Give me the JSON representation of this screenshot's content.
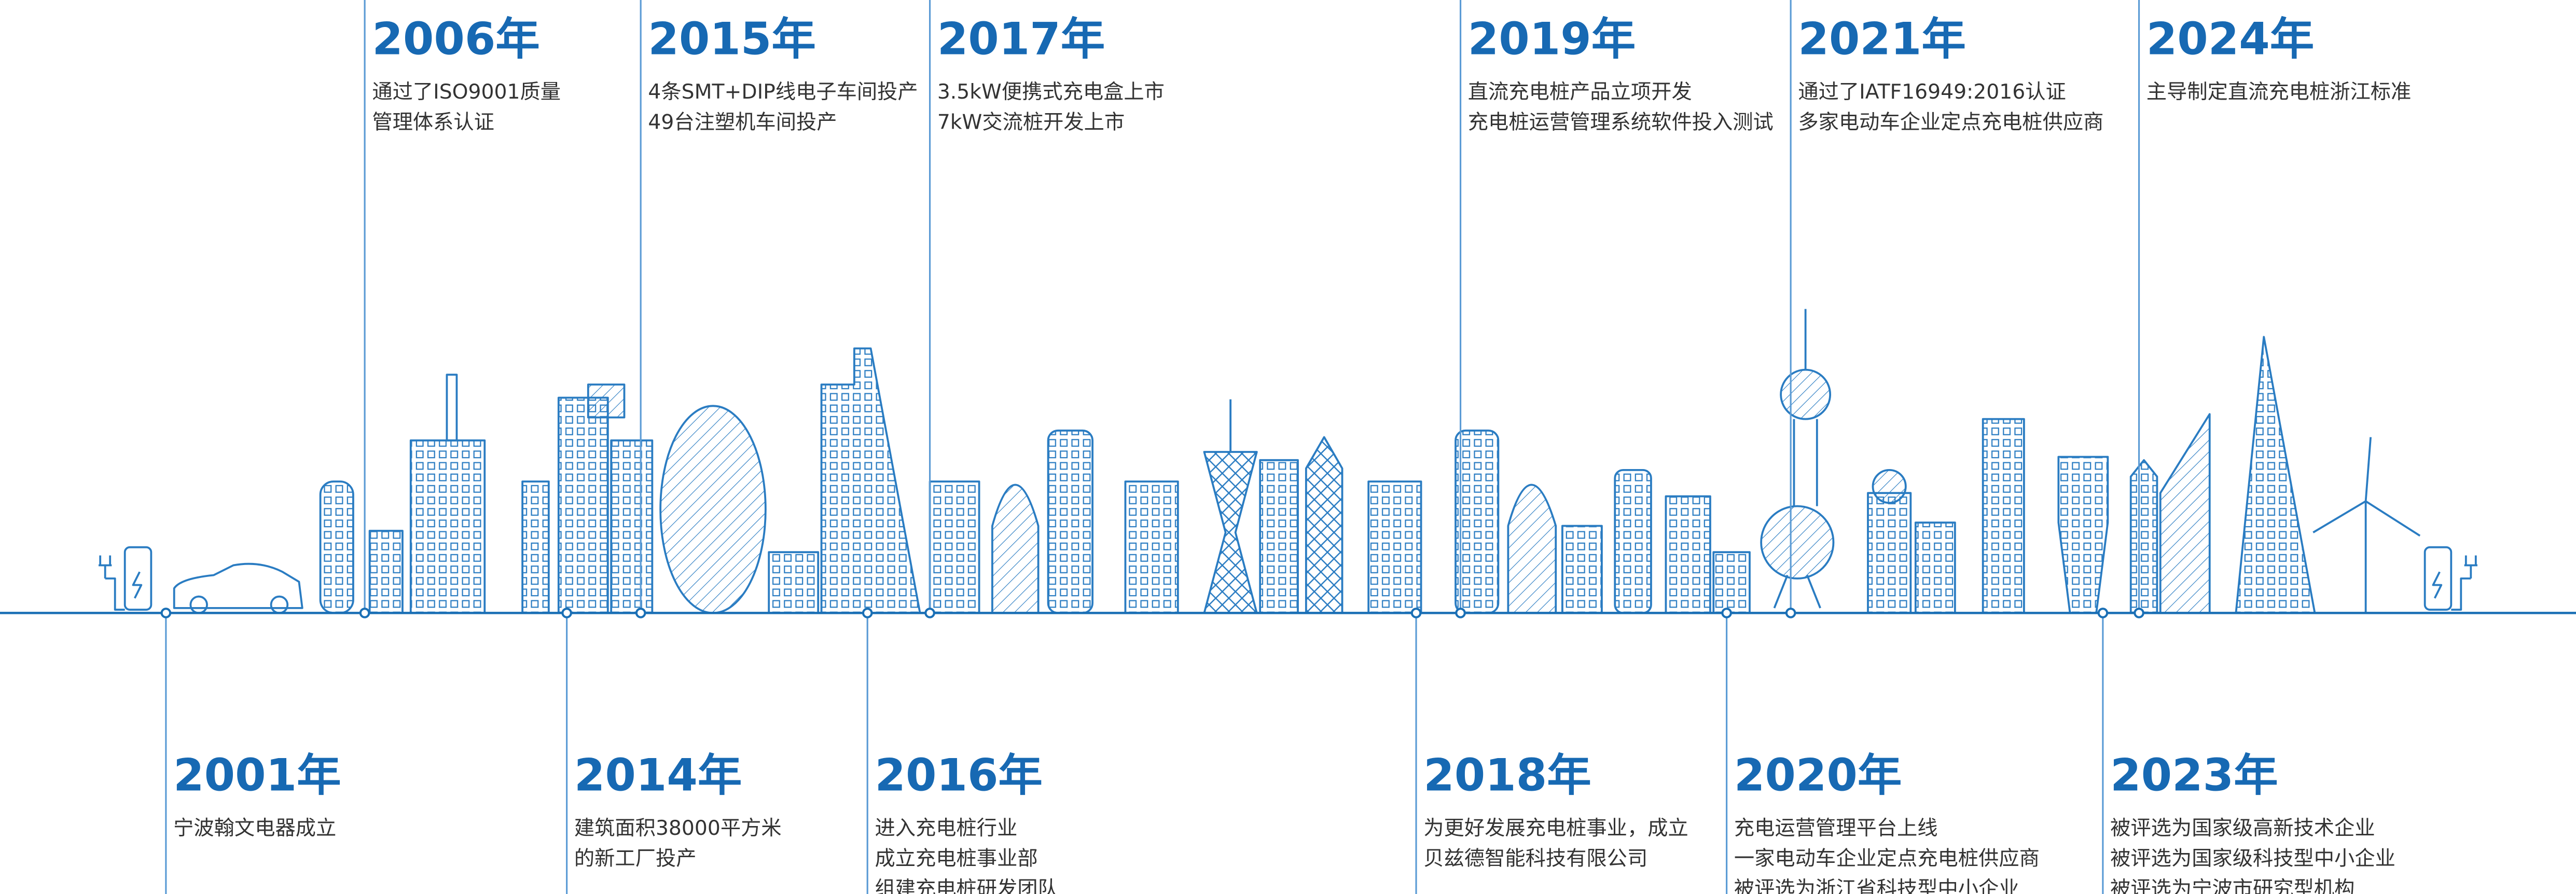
{
  "timeline": {
    "events": [
      {
        "year": "2001年",
        "lines": [
          "宁波翰文电器成立"
        ]
      },
      {
        "year": "2006年",
        "lines": [
          "通过了ISO9001质量",
          "管理体系认证"
        ]
      },
      {
        "year": "2014年",
        "lines": [
          "建筑面积38000平方米",
          "的新工厂投产"
        ]
      },
      {
        "year": "2015年",
        "lines": [
          "4条SMT+DIP线电子车间投产",
          "49台注塑机车间投产"
        ]
      },
      {
        "year": "2016年",
        "lines": [
          "进入充电桩行业",
          "成立充电桩事业部",
          "组建充电桩研发团队"
        ]
      },
      {
        "year": "2017年",
        "lines": [
          "3.5kW便携式充电盒上市",
          "7kW交流桩开发上市"
        ]
      },
      {
        "year": "2018年",
        "lines": [
          "为更好发展充电桩事业，成立",
          "贝兹德智能科技有限公司"
        ]
      },
      {
        "year": "2019年",
        "lines": [
          "直流充电桩产品立项开发",
          "充电桩运营管理系统软件投入测试"
        ]
      },
      {
        "year": "2020年",
        "lines": [
          "充电运营管理平台上线",
          "一家电动车企业定点充电桩供应商",
          "被评选为浙江省科技型中小企业"
        ]
      },
      {
        "year": "2021年",
        "lines": [
          "通过了IATF16949:2016认证",
          "多家电动车企业定点充电桩供应商"
        ]
      },
      {
        "year": "2023年",
        "lines": [
          "被评选为国家级高新技术企业",
          "被评选为国家级科技型中小企业",
          "被评选为宁波市研究型机构"
        ]
      },
      {
        "year": "2024年",
        "lines": [
          "主导制定直流充电桩浙江标准"
        ]
      }
    ]
  }
}
